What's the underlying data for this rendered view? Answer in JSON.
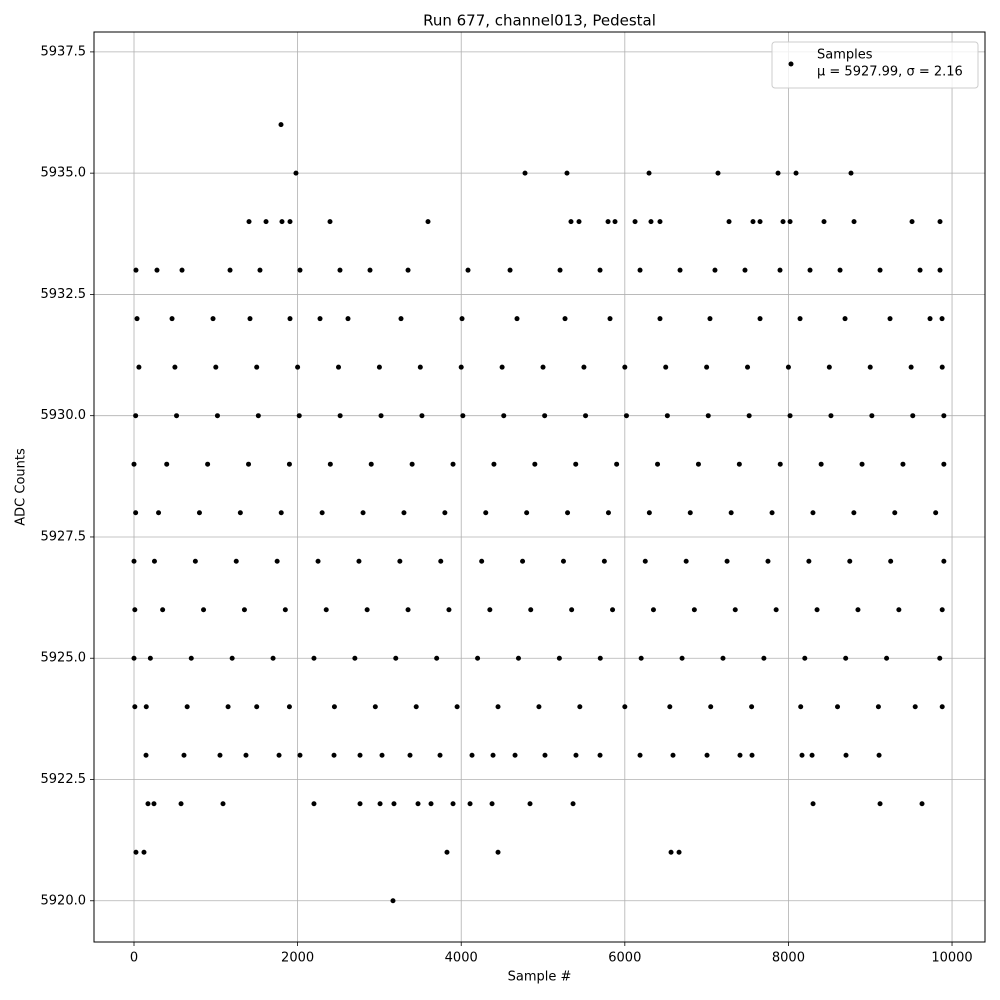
{
  "chart_data": {
    "type": "scatter",
    "title": "Run 677, channel013, Pedestal",
    "x_label": "Sample #",
    "y_label": "ADC Counts",
    "xlim": [
      -489,
      10403
    ],
    "ylim": [
      5919.15,
      5937.91
    ],
    "xticks": [
      0,
      2000,
      4000,
      6000,
      8000,
      10000
    ],
    "yticks": [
      {
        "value": 5920,
        "label": "5920.0"
      },
      {
        "value": 5922.5,
        "label": "5922.5"
      },
      {
        "value": 5925,
        "label": "5925.0"
      },
      {
        "value": 5927.5,
        "label": "5927.5"
      },
      {
        "value": 5930,
        "label": "5930.0"
      },
      {
        "value": 5932.5,
        "label": "5932.5"
      },
      {
        "value": 5935,
        "label": "5935.0"
      },
      {
        "value": 5937.5,
        "label": "5937.5"
      }
    ],
    "grid": true,
    "legend_position": "upper right",
    "legend_note": "μ = 5927.99, σ = 2.16",
    "series": [
      {
        "name": "Samples",
        "color": "#000000",
        "x": [
          1797,
          1980,
          4780,
          5293,
          6296,
          7139,
          7873,
          8093,
          8765,
          1406,
          1614,
          1809,
          1907,
          2396,
          3594,
          5342,
          5440,
          5795,
          5880,
          6125,
          6320,
          6430,
          7274,
          7567,
          7653,
          7934,
          8020,
          8435,
          8802,
          9511,
          9853,
          24,
          281,
          587,
          1174,
          1540,
          2029,
          2518,
          2885,
          3350,
          4083,
          4597,
          5208,
          5697,
          6186,
          6675,
          7102,
          7469,
          7897,
          8264,
          8631,
          9120,
          9609,
          9853,
          37,
          465,
          966,
          1418,
          1907,
          2274,
          2616,
          3264,
          4010,
          4682,
          5269,
          5819,
          6430,
          7041,
          7653,
          8142,
          8692,
          9242,
          9731,
          9878,
          60,
          500,
          1000,
          1500,
          2000,
          2500,
          3000,
          3500,
          4000,
          4500,
          5000,
          5500,
          6000,
          6500,
          7000,
          7500,
          8000,
          8500,
          9000,
          9500,
          9880,
          20,
          520,
          1020,
          1520,
          2020,
          2520,
          3020,
          3520,
          4020,
          4520,
          5020,
          5520,
          6020,
          6520,
          7020,
          7520,
          8020,
          8520,
          9020,
          9520,
          9900,
          0,
          400,
          900,
          1400,
          1900,
          2400,
          2900,
          3400,
          3900,
          4400,
          4900,
          5400,
          5900,
          6400,
          6900,
          7400,
          7900,
          8400,
          8900,
          9400,
          9900,
          20,
          300,
          800,
          1300,
          1800,
          2300,
          2800,
          3300,
          3800,
          4300,
          4800,
          5300,
          5800,
          6300,
          6800,
          7300,
          7800,
          8300,
          8800,
          9300,
          9800,
          0,
          250,
          750,
          1250,
          1750,
          2250,
          2750,
          3250,
          3750,
          4250,
          4750,
          5250,
          5750,
          6250,
          6750,
          7250,
          7750,
          8250,
          8750,
          9250,
          9900,
          10,
          350,
          850,
          1350,
          1850,
          2350,
          2850,
          3350,
          3850,
          4350,
          4850,
          5350,
          5850,
          6350,
          6850,
          7350,
          7850,
          8350,
          8850,
          9350,
          9880,
          0,
          200,
          700,
          1200,
          1700,
          2200,
          2700,
          3200,
          3700,
          4200,
          4700,
          5200,
          5700,
          6200,
          6700,
          7200,
          7700,
          8200,
          8700,
          9200,
          9850,
          10,
          150,
          650,
          1150,
          1500,
          1900,
          2450,
          2950,
          3450,
          3950,
          4450,
          4950,
          5450,
          6000,
          6550,
          7050,
          7550,
          8150,
          8600,
          9100,
          9550,
          9880,
          147,
          611,
          1051,
          1369,
          1773,
          2029,
          2445,
          2763,
          3032,
          3374,
          3741,
          4132,
          4389,
          4658,
          5024,
          5403,
          5697,
          6186,
          6589,
          7005,
          7408,
          7555,
          8166,
          8289,
          8704,
          9108,
          171,
          244,
          575,
          1088,
          2200,
          2763,
          3008,
          3178,
          3472,
          3631,
          3900,
          4108,
          4377,
          4841,
          5367,
          8301,
          9120,
          9633,
          24,
          122,
          3826,
          4450,
          6565,
          6663,
          3166
        ],
        "values": [
          5936,
          5935,
          5935,
          5935,
          5935,
          5935,
          5935,
          5935,
          5935,
          5934,
          5934,
          5934,
          5934,
          5934,
          5934,
          5934,
          5934,
          5934,
          5934,
          5934,
          5934,
          5934,
          5934,
          5934,
          5934,
          5934,
          5934,
          5934,
          5934,
          5934,
          5934,
          5933,
          5933,
          5933,
          5933,
          5933,
          5933,
          5933,
          5933,
          5933,
          5933,
          5933,
          5933,
          5933,
          5933,
          5933,
          5933,
          5933,
          5933,
          5933,
          5933,
          5933,
          5933,
          5933,
          5932,
          5932,
          5932,
          5932,
          5932,
          5932,
          5932,
          5932,
          5932,
          5932,
          5932,
          5932,
          5932,
          5932,
          5932,
          5932,
          5932,
          5932,
          5932,
          5932,
          5931,
          5931,
          5931,
          5931,
          5931,
          5931,
          5931,
          5931,
          5931,
          5931,
          5931,
          5931,
          5931,
          5931,
          5931,
          5931,
          5931,
          5931,
          5931,
          5931,
          5931,
          5930,
          5930,
          5930,
          5930,
          5930,
          5930,
          5930,
          5930,
          5930,
          5930,
          5930,
          5930,
          5930,
          5930,
          5930,
          5930,
          5930,
          5930,
          5930,
          5930,
          5930,
          5929,
          5929,
          5929,
          5929,
          5929,
          5929,
          5929,
          5929,
          5929,
          5929,
          5929,
          5929,
          5929,
          5929,
          5929,
          5929,
          5929,
          5929,
          5929,
          5929,
          5929,
          5928,
          5928,
          5928,
          5928,
          5928,
          5928,
          5928,
          5928,
          5928,
          5928,
          5928,
          5928,
          5928,
          5928,
          5928,
          5928,
          5928,
          5928,
          5928,
          5928,
          5928,
          5927,
          5927,
          5927,
          5927,
          5927,
          5927,
          5927,
          5927,
          5927,
          5927,
          5927,
          5927,
          5927,
          5927,
          5927,
          5927,
          5927,
          5927,
          5927,
          5927,
          5927,
          5926,
          5926,
          5926,
          5926,
          5926,
          5926,
          5926,
          5926,
          5926,
          5926,
          5926,
          5926,
          5926,
          5926,
          5926,
          5926,
          5926,
          5926,
          5926,
          5926,
          5926,
          5925,
          5925,
          5925,
          5925,
          5925,
          5925,
          5925,
          5925,
          5925,
          5925,
          5925,
          5925,
          5925,
          5925,
          5925,
          5925,
          5925,
          5925,
          5925,
          5925,
          5925,
          5924,
          5924,
          5924,
          5924,
          5924,
          5924,
          5924,
          5924,
          5924,
          5924,
          5924,
          5924,
          5924,
          5924,
          5924,
          5924,
          5924,
          5924,
          5924,
          5924,
          5924,
          5924,
          5923,
          5923,
          5923,
          5923,
          5923,
          5923,
          5923,
          5923,
          5923,
          5923,
          5923,
          5923,
          5923,
          5923,
          5923,
          5923,
          5923,
          5923,
          5923,
          5923,
          5923,
          5923,
          5923,
          5923,
          5923,
          5923,
          5922,
          5922,
          5922,
          5922,
          5922,
          5922,
          5922,
          5922,
          5922,
          5922,
          5922,
          5922,
          5922,
          5922,
          5922,
          5922,
          5922,
          5922,
          5921,
          5921,
          5921,
          5921,
          5921,
          5921,
          5920
        ]
      }
    ]
  }
}
